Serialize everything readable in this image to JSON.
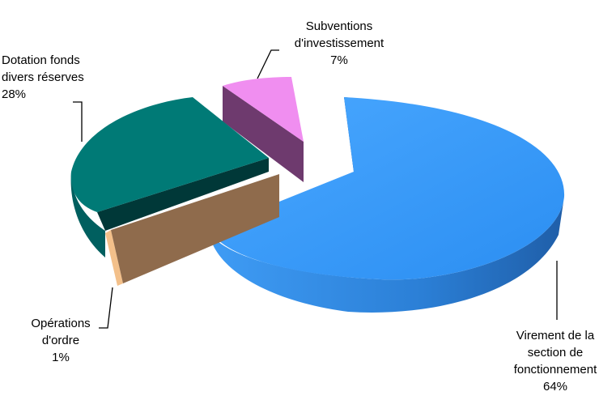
{
  "chart_data": {
    "type": "pie",
    "title": "",
    "slices": [
      {
        "label_lines": [
          "Virement de la",
          "section de",
          "fonctionnement"
        ],
        "value": 64,
        "value_label": "64%",
        "color": "#3399ff"
      },
      {
        "label_lines": [
          "Subventions",
          "d'investissement"
        ],
        "value": 7,
        "value_label": "7%",
        "color": "#f08ef0"
      },
      {
        "label_lines": [
          "Dotation fonds",
          "divers réserves"
        ],
        "value": 28,
        "value_label": "28%",
        "color": "#008080"
      },
      {
        "label_lines": [
          "Opérations",
          "d'ordre"
        ],
        "value": 1,
        "value_label": "1%",
        "color": "#e0a070"
      }
    ],
    "legend": "none",
    "style": "3d-exploded"
  }
}
